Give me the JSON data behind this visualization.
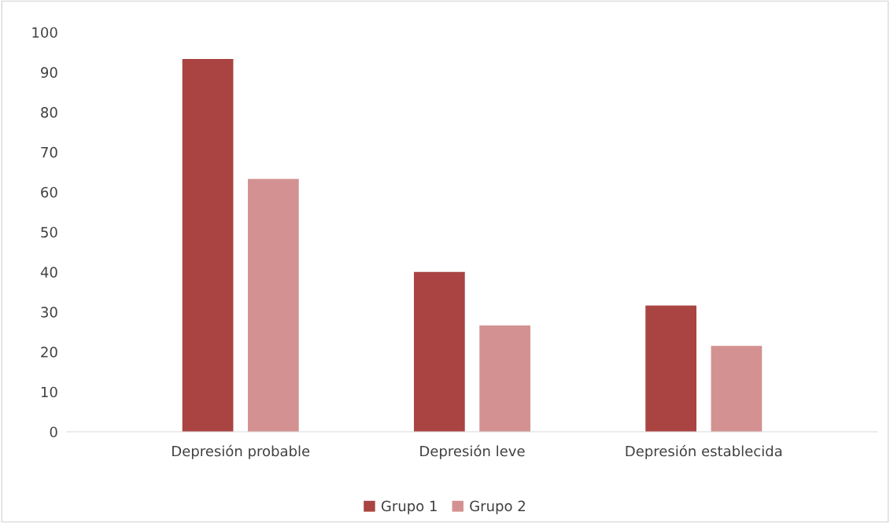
{
  "chart_data": {
    "type": "bar",
    "categories": [
      "Depresión probable",
      "Depresión leve",
      "Depresión establecida"
    ],
    "series": [
      {
        "name": "Grupo 1",
        "color": "#a94442",
        "values": [
          93.3,
          40,
          31.6
        ]
      },
      {
        "name": "Grupo 2",
        "color": "#d39291",
        "values": [
          63.3,
          26.6,
          21.5
        ]
      }
    ],
    "ylim": [
      0,
      100
    ],
    "yticks": [
      0,
      10,
      20,
      30,
      40,
      50,
      60,
      70,
      80,
      90,
      100
    ],
    "grid": false,
    "legend": "bottom"
  }
}
